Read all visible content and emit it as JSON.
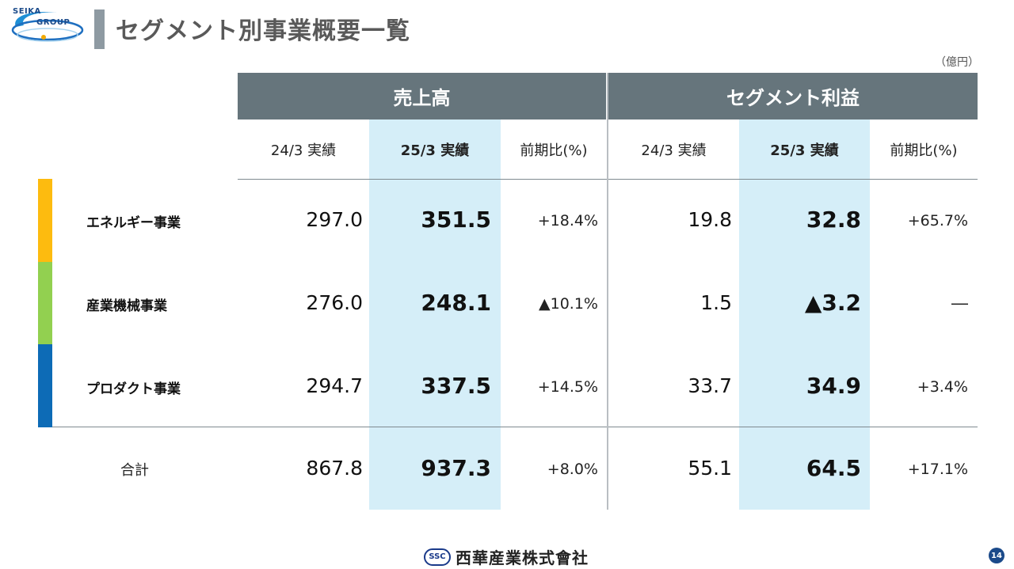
{
  "header": {
    "logo_top": "SEIKA",
    "logo_bottom": "GROUP",
    "title": "セグメント別事業概要一覧",
    "unit": "（億円）"
  },
  "table": {
    "group_headers": [
      "売上高",
      "セグメント利益"
    ],
    "sub_headers": [
      "24/3 実績",
      "25/3 実績",
      "前期比(%)",
      "24/3 実績",
      "25/3 実績",
      "前期比(%)"
    ],
    "rows": [
      {
        "name": "エネルギー事業",
        "color": "#fdbb0f",
        "sales_prev": "297.0",
        "sales_curr": "351.5",
        "sales_chg": "+18.4%",
        "profit_prev": "19.8",
        "profit_curr": "32.8",
        "profit_chg": "+65.7%"
      },
      {
        "name": "産業機械事業",
        "color": "#92d050",
        "sales_prev": "276.0",
        "sales_curr": "248.1",
        "sales_chg": "▲10.1%",
        "profit_prev": "1.5",
        "profit_curr": "▲3.2",
        "profit_chg": "―"
      },
      {
        "name": "プロダクト事業",
        "color": "#0d6bb6",
        "sales_prev": "294.7",
        "sales_curr": "337.5",
        "sales_chg": "+14.5%",
        "profit_prev": "33.7",
        "profit_curr": "34.9",
        "profit_chg": "+3.4%"
      }
    ],
    "total": {
      "name": "合計",
      "sales_prev": "867.8",
      "sales_curr": "937.3",
      "sales_chg": "+8.0%",
      "profit_prev": "55.1",
      "profit_curr": "64.5",
      "profit_chg": "+17.1%"
    }
  },
  "footer": {
    "badge": "SSC",
    "company": "西華産業株式會社",
    "page": "14"
  },
  "colors": {
    "header_band": "#66757c",
    "highlight": "#d5eef8",
    "title_text": "#595959"
  }
}
